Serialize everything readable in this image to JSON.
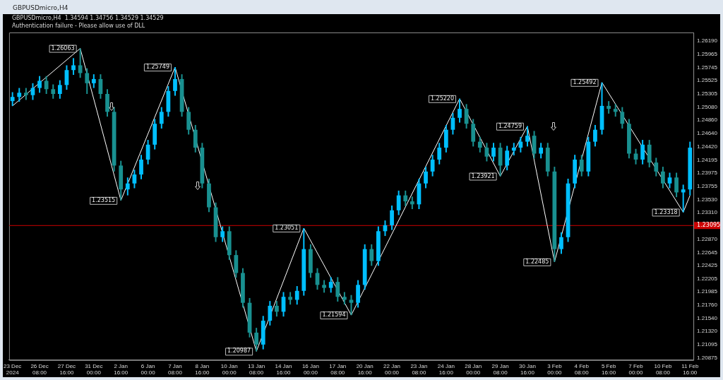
{
  "chart_data": {
    "type": "candlestick",
    "title": "GBPUSDmicro,H4",
    "subtitle": "GBPUSDmicro,H4  1.34594 1.34756 1.34529 1.34529",
    "annotations": [
      "Authentication failure - Please allow use of DLL"
    ],
    "categories": [
      "23 Dec 2024",
      null,
      null,
      null,
      "26 Dec 08:00",
      null,
      null,
      null,
      "27 Dec 16:00",
      null,
      null,
      null,
      "31 Dec 00:00",
      null,
      null,
      null,
      "2 Jan 16:00",
      null,
      null,
      null,
      "6 Jan 00:00",
      null,
      null,
      null,
      "7 Jan 08:00",
      null,
      null,
      null,
      "8 Jan 16:00",
      null,
      null,
      null,
      "10 Jan 00:00",
      null,
      null,
      null,
      "13 Jan 08:00",
      null,
      null,
      null,
      "14 Jan 16:00",
      null,
      null,
      null,
      "16 Jan 00:00",
      null,
      null,
      null,
      "17 Jan 08:00",
      null,
      null,
      null,
      "20 Jan 16:00",
      null,
      null,
      null,
      "22 Jan 00:00",
      null,
      null,
      null,
      "23 Jan 08:00",
      null,
      null,
      null,
      "24 Jan 16:00",
      null,
      null,
      null,
      "28 Jan 00:00",
      null,
      null,
      null,
      "29 Jan 08:00",
      null,
      null,
      null,
      "30 Jan 16:00",
      null,
      null,
      null,
      "3 Feb 00:00",
      null,
      null,
      null,
      "4 Feb 08:00",
      null,
      null,
      null,
      "5 Feb 16:00",
      null,
      null,
      null,
      "7 Feb 00:00",
      null,
      null,
      null,
      "10 Feb 08:00",
      null,
      null,
      null,
      "11 Feb 16:00"
    ],
    "series": [
      {
        "type": "candlestick",
        "ohlc": [
          [
            1.2518,
            1.2533,
            1.251,
            1.2525
          ],
          [
            1.2525,
            1.254,
            1.2517,
            1.2532
          ],
          [
            1.2532,
            1.254,
            1.252,
            1.2528
          ],
          [
            1.2528,
            1.2548,
            1.252,
            1.254
          ],
          [
            1.254,
            1.256,
            1.2532,
            1.2552
          ],
          [
            1.2552,
            1.256,
            1.253,
            1.2538
          ],
          [
            1.2538,
            1.2546,
            1.2522,
            1.253
          ],
          [
            1.253,
            1.2553,
            1.2522,
            1.2545
          ],
          [
            1.2545,
            1.2578,
            1.2537,
            1.257
          ],
          [
            1.257,
            1.259,
            1.2562,
            1.2578
          ],
          [
            1.2578,
            1.26063,
            1.2557,
            1.2565
          ],
          [
            1.2565,
            1.2573,
            1.253,
            1.2548
          ],
          [
            1.2548,
            1.2563,
            1.254,
            1.2555
          ],
          [
            1.2555,
            1.2563,
            1.2522,
            1.253
          ],
          [
            1.253,
            1.2538,
            1.2492,
            1.25
          ],
          [
            1.25,
            1.2508,
            1.24,
            1.241
          ],
          [
            1.241,
            1.2418,
            1.23515,
            1.237
          ],
          [
            1.237,
            1.239,
            1.236,
            1.238
          ],
          [
            1.238,
            1.2403,
            1.2372,
            1.2395
          ],
          [
            1.2395,
            1.2428,
            1.2387,
            1.242
          ],
          [
            1.242,
            1.2453,
            1.2412,
            1.2445
          ],
          [
            1.2445,
            1.2488,
            1.2437,
            1.248
          ],
          [
            1.248,
            1.2508,
            1.2472,
            1.25
          ],
          [
            1.25,
            1.2543,
            1.2492,
            1.2535
          ],
          [
            1.2535,
            1.25749,
            1.2527,
            1.2555
          ],
          [
            1.2555,
            1.2563,
            1.2492,
            1.25
          ],
          [
            1.25,
            1.2508,
            1.2462,
            1.247
          ],
          [
            1.247,
            1.2478,
            1.2432,
            1.244
          ],
          [
            1.244,
            1.2448,
            1.2372,
            1.238
          ],
          [
            1.238,
            1.2388,
            1.2332,
            1.234
          ],
          [
            1.234,
            1.2348,
            1.2282,
            1.229
          ],
          [
            1.229,
            1.2308,
            1.2282,
            1.23
          ],
          [
            1.23,
            1.2308,
            1.2252,
            1.226
          ],
          [
            1.226,
            1.2268,
            1.2222,
            1.223
          ],
          [
            1.223,
            1.2238,
            1.2172,
            1.218
          ],
          [
            1.218,
            1.2188,
            1.2122,
            1.213
          ],
          [
            1.213,
            1.2138,
            1.20987,
            1.211
          ],
          [
            1.211,
            1.2158,
            1.2102,
            1.215
          ],
          [
            1.215,
            1.2183,
            1.2142,
            1.2175
          ],
          [
            1.2175,
            1.2183,
            1.2157,
            1.2165
          ],
          [
            1.2165,
            1.2198,
            1.2157,
            1.219
          ],
          [
            1.219,
            1.2198,
            1.2177,
            1.2185
          ],
          [
            1.2185,
            1.2208,
            1.2177,
            1.22
          ],
          [
            1.22,
            1.23051,
            1.2192,
            1.227
          ],
          [
            1.227,
            1.2278,
            1.2222,
            1.223
          ],
          [
            1.223,
            1.2238,
            1.2202,
            1.221
          ],
          [
            1.221,
            1.2218,
            1.2197,
            1.2205
          ],
          [
            1.2205,
            1.2223,
            1.2197,
            1.2215
          ],
          [
            1.2215,
            1.2223,
            1.2182,
            1.219
          ],
          [
            1.219,
            1.2198,
            1.2177,
            1.2185
          ],
          [
            1.2185,
            1.2193,
            1.21594,
            1.218
          ],
          [
            1.218,
            1.2218,
            1.2172,
            1.221
          ],
          [
            1.221,
            1.2278,
            1.2202,
            1.227
          ],
          [
            1.227,
            1.2278,
            1.2242,
            1.225
          ],
          [
            1.225,
            1.2308,
            1.2242,
            1.23
          ],
          [
            1.23,
            1.2318,
            1.2292,
            1.231
          ],
          [
            1.231,
            1.2343,
            1.2302,
            1.2335
          ],
          [
            1.2335,
            1.2368,
            1.2327,
            1.236
          ],
          [
            1.236,
            1.2368,
            1.2342,
            1.235
          ],
          [
            1.235,
            1.2358,
            1.2337,
            1.2345
          ],
          [
            1.2345,
            1.2388,
            1.2337,
            1.238
          ],
          [
            1.238,
            1.2408,
            1.2372,
            1.24
          ],
          [
            1.24,
            1.2428,
            1.2392,
            1.242
          ],
          [
            1.242,
            1.2448,
            1.2412,
            1.244
          ],
          [
            1.244,
            1.2478,
            1.2432,
            1.247
          ],
          [
            1.247,
            1.2498,
            1.2462,
            1.249
          ],
          [
            1.249,
            1.2522,
            1.2482,
            1.2505
          ],
          [
            1.2505,
            1.2513,
            1.2472,
            1.248
          ],
          [
            1.248,
            1.2488,
            1.2442,
            1.245
          ],
          [
            1.245,
            1.2458,
            1.2432,
            1.244
          ],
          [
            1.244,
            1.2448,
            1.2417,
            1.2425
          ],
          [
            1.2425,
            1.2448,
            1.2417,
            1.244
          ],
          [
            1.244,
            1.2448,
            1.23921,
            1.241
          ],
          [
            1.241,
            1.2443,
            1.2402,
            1.2435
          ],
          [
            1.2435,
            1.2448,
            1.2427,
            1.244
          ],
          [
            1.244,
            1.2458,
            1.2432,
            1.245
          ],
          [
            1.245,
            1.24759,
            1.2442,
            1.246
          ],
          [
            1.246,
            1.2468,
            1.2422,
            1.243
          ],
          [
            1.243,
            1.2448,
            1.2422,
            1.244
          ],
          [
            1.244,
            1.2448,
            1.2392,
            1.24
          ],
          [
            1.24,
            1.2408,
            1.22485,
            1.227
          ],
          [
            1.227,
            1.2298,
            1.2262,
            1.229
          ],
          [
            1.229,
            1.2388,
            1.2282,
            1.238
          ],
          [
            1.238,
            1.2428,
            1.2372,
            1.242
          ],
          [
            1.242,
            1.2428,
            1.2392,
            1.24
          ],
          [
            1.24,
            1.2458,
            1.2392,
            1.245
          ],
          [
            1.245,
            1.2478,
            1.2442,
            1.247
          ],
          [
            1.247,
            1.25492,
            1.2462,
            1.251
          ],
          [
            1.251,
            1.2518,
            1.2497,
            1.2505
          ],
          [
            1.2505,
            1.2513,
            1.2492,
            1.25
          ],
          [
            1.25,
            1.2508,
            1.2472,
            1.248
          ],
          [
            1.248,
            1.2488,
            1.2422,
            1.243
          ],
          [
            1.243,
            1.2438,
            1.2412,
            1.242
          ],
          [
            1.242,
            1.2453,
            1.2412,
            1.2445
          ],
          [
            1.2445,
            1.2453,
            1.2407,
            1.2415
          ],
          [
            1.2415,
            1.2423,
            1.2392,
            1.24
          ],
          [
            1.24,
            1.2408,
            1.2372,
            1.238
          ],
          [
            1.238,
            1.2398,
            1.2372,
            1.239
          ],
          [
            1.239,
            1.2398,
            1.2357,
            1.2365
          ],
          [
            1.2365,
            1.2378,
            1.23318,
            1.237
          ],
          [
            1.237,
            1.245,
            1.236,
            1.244
          ]
        ],
        "colors": [
          "#00bfff",
          "#00bfff",
          "#199090",
          "#00bfff",
          "#00bfff",
          "#199090",
          "#199090",
          "#00bfff",
          "#00bfff",
          "#00bfff",
          "#199090",
          "#199090",
          "#00bfff",
          "#199090",
          "#199090",
          "#199090",
          "#199090",
          "#00bfff",
          "#00bfff",
          "#00bfff",
          "#00bfff",
          "#00bfff",
          "#00bfff",
          "#00bfff",
          "#00bfff",
          "#199090",
          "#199090",
          "#199090",
          "#199090",
          "#199090",
          "#199090",
          "#00bfff",
          "#199090",
          "#199090",
          "#199090",
          "#199090",
          "#199090",
          "#00bfff",
          "#00bfff",
          "#199090",
          "#00bfff",
          "#199090",
          "#00bfff",
          "#00bfff",
          "#199090",
          "#199090",
          "#199090",
          "#00bfff",
          "#199090",
          "#199090",
          "#199090",
          "#00bfff",
          "#00bfff",
          "#199090",
          "#00bfff",
          "#00bfff",
          "#00bfff",
          "#00bfff",
          "#199090",
          "#199090",
          "#00bfff",
          "#00bfff",
          "#00bfff",
          "#00bfff",
          "#00bfff",
          "#00bfff",
          "#00bfff",
          "#199090",
          "#199090",
          "#199090",
          "#199090",
          "#00bfff",
          "#199090",
          "#00bfff",
          "#00bfff",
          "#00bfff",
          "#00bfff",
          "#199090",
          "#00bfff",
          "#199090",
          "#199090",
          "#00bfff",
          "#00bfff",
          "#00bfff",
          "#199090",
          "#00bfff",
          "#00bfff",
          "#00bfff",
          "#199090",
          "#199090",
          "#199090",
          "#199090",
          "#199090",
          "#00bfff",
          "#199090",
          "#199090",
          "#199090",
          "#00bfff",
          "#199090",
          "#00bfff",
          "#00bfff"
        ]
      },
      {
        "type": "line",
        "color": "#ffffff",
        "values": [
          1.251,
          null,
          null,
          null,
          null,
          null,
          null,
          null,
          null,
          null,
          1.26063,
          null,
          null,
          null,
          null,
          null,
          1.23515,
          null,
          null,
          null,
          null,
          null,
          null,
          null,
          1.25749,
          null,
          null,
          null,
          null,
          null,
          null,
          null,
          null,
          null,
          null,
          null,
          1.20987,
          null,
          null,
          null,
          null,
          null,
          null,
          1.23051,
          null,
          null,
          null,
          null,
          null,
          null,
          1.21594,
          null,
          null,
          null,
          null,
          null,
          null,
          null,
          null,
          null,
          null,
          null,
          null,
          null,
          null,
          null,
          1.2522,
          null,
          null,
          null,
          null,
          null,
          1.23921,
          null,
          null,
          null,
          1.24759,
          null,
          null,
          null,
          1.22485,
          null,
          null,
          null,
          null,
          null,
          null,
          1.25492,
          null,
          null,
          null,
          null,
          null,
          null,
          null,
          null,
          null,
          null,
          null,
          1.23318,
          1.236
        ],
        "value_labels": [
          null,
          null,
          null,
          null,
          null,
          null,
          null,
          null,
          null,
          null,
          "1.26063",
          null,
          null,
          null,
          null,
          null,
          "1.23515",
          null,
          null,
          null,
          null,
          null,
          null,
          null,
          "1.25749",
          null,
          null,
          null,
          null,
          null,
          null,
          null,
          null,
          null,
          null,
          null,
          "1.20987",
          null,
          null,
          null,
          null,
          null,
          null,
          "1.23051",
          null,
          null,
          null,
          null,
          null,
          null,
          "1.21594",
          null,
          null,
          null,
          null,
          null,
          null,
          null,
          null,
          null,
          null,
          null,
          null,
          null,
          null,
          null,
          "1.25220",
          null,
          null,
          null,
          null,
          null,
          "1.23921",
          null,
          null,
          null,
          "1.24759",
          null,
          null,
          null,
          "1.22485",
          null,
          null,
          null,
          null,
          null,
          null,
          "1.25492",
          null,
          null,
          null,
          null,
          null,
          null,
          null,
          null,
          null,
          null,
          null,
          "1.23318",
          null
        ]
      }
    ],
    "ylim": [
      1.2084,
      1.2633
    ],
    "yticks": [
      {
        "value": 1.2619,
        "label": "1.26190"
      },
      {
        "value": 1.25965,
        "label": "1.25965"
      },
      {
        "value": 1.25745,
        "label": "1.25745"
      },
      {
        "value": 1.25525,
        "label": "1.25525"
      },
      {
        "value": 1.25305,
        "label": "1.25305"
      },
      {
        "value": 1.2508,
        "label": "1.25080"
      },
      {
        "value": 1.2486,
        "label": "1.24860"
      },
      {
        "value": 1.2464,
        "label": "1.24640"
      },
      {
        "value": 1.2442,
        "label": "1.24420"
      },
      {
        "value": 1.24195,
        "label": "1.24195"
      },
      {
        "value": 1.23975,
        "label": "1.23975"
      },
      {
        "value": 1.23755,
        "label": "1.23755"
      },
      {
        "value": 1.2353,
        "label": "1.23530"
      },
      {
        "value": 1.2331,
        "label": "1.23310"
      },
      {
        "value": 1.2287,
        "label": "1.22870"
      },
      {
        "value": 1.22645,
        "label": "1.22645"
      },
      {
        "value": 1.22425,
        "label": "1.22425"
      },
      {
        "value": 1.22205,
        "label": "1.22205"
      },
      {
        "value": 1.21985,
        "label": "1.21985"
      },
      {
        "value": 1.2176,
        "label": "1.21760"
      },
      {
        "value": 1.2154,
        "label": "1.21540"
      },
      {
        "value": 1.2132,
        "label": "1.21320"
      },
      {
        "value": 1.21095,
        "label": "1.21095"
      },
      {
        "value": 1.20875,
        "label": "1.20875"
      }
    ],
    "ref_lines": [
      {
        "axis": "y",
        "value": 1.23095,
        "label": "1.23095",
        "color": "#cc0000"
      }
    ],
    "grid": false,
    "legend": false
  }
}
